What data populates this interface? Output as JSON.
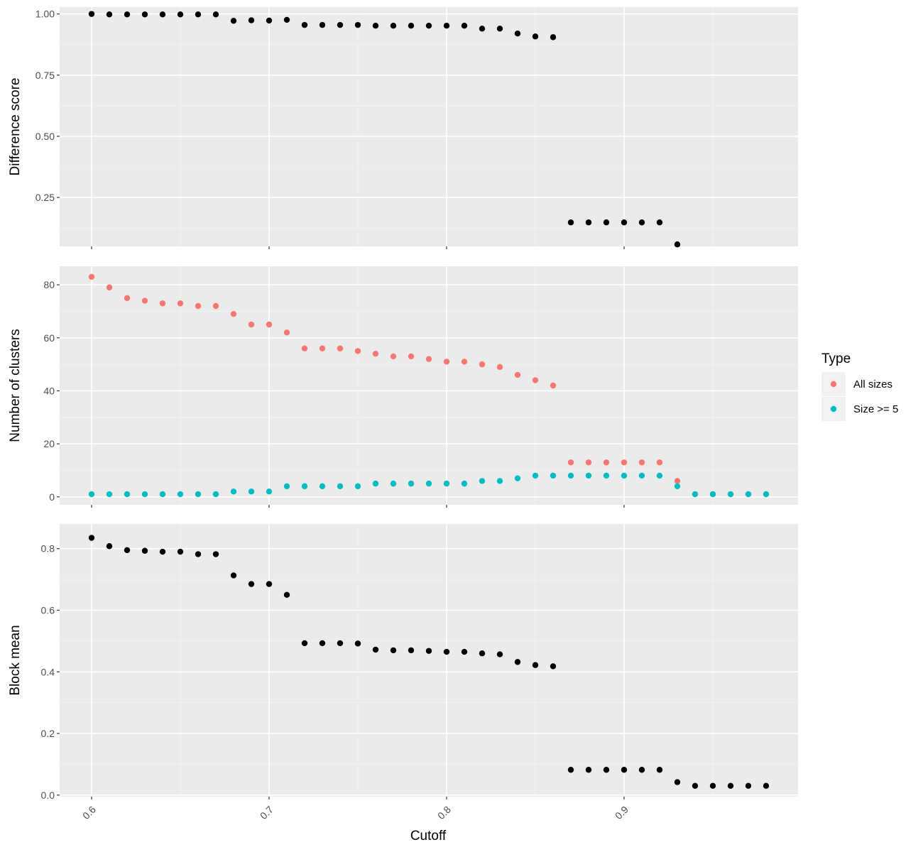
{
  "chart_data": {
    "type": "scatter",
    "xlabel": "Cutoff",
    "x_ticks": [
      0.6,
      0.7,
      0.8,
      0.9
    ],
    "x_tick_labels": [
      "0.6",
      "0.7",
      "0.8",
      "0.9"
    ],
    "xlim": [
      0.582,
      0.998
    ],
    "facets": [
      {
        "ylabel": "Difference score",
        "ylim": [
          0.05,
          1.028
        ],
        "y_ticks": [
          0.25,
          0.5,
          0.75,
          1.0
        ],
        "y_tick_labels": [
          "0.25",
          "0.50",
          "0.75",
          "1.00"
        ],
        "series": [
          {
            "color": "#000000",
            "points": [
              [
                0.6,
                1.0
              ],
              [
                0.61,
                0.998
              ],
              [
                0.62,
                0.998
              ],
              [
                0.63,
                0.998
              ],
              [
                0.64,
                0.998
              ],
              [
                0.65,
                0.998
              ],
              [
                0.66,
                0.998
              ],
              [
                0.67,
                0.998
              ],
              [
                0.68,
                0.972
              ],
              [
                0.69,
                0.974
              ],
              [
                0.7,
                0.973
              ],
              [
                0.71,
                0.976
              ],
              [
                0.72,
                0.955
              ],
              [
                0.73,
                0.955
              ],
              [
                0.74,
                0.955
              ],
              [
                0.75,
                0.955
              ],
              [
                0.76,
                0.952
              ],
              [
                0.77,
                0.952
              ],
              [
                0.78,
                0.952
              ],
              [
                0.79,
                0.952
              ],
              [
                0.8,
                0.952
              ],
              [
                0.81,
                0.952
              ],
              [
                0.82,
                0.94
              ],
              [
                0.83,
                0.94
              ],
              [
                0.84,
                0.92
              ],
              [
                0.85,
                0.908
              ],
              [
                0.86,
                0.905
              ],
              [
                0.87,
                0.148
              ],
              [
                0.88,
                0.148
              ],
              [
                0.89,
                0.148
              ],
              [
                0.9,
                0.148
              ],
              [
                0.91,
                0.148
              ],
              [
                0.92,
                0.148
              ],
              [
                0.93,
                0.058
              ]
            ]
          }
        ]
      },
      {
        "ylabel": "Number of clusters",
        "ylim": [
          -3,
          87
        ],
        "y_ticks": [
          0,
          20,
          40,
          60,
          80
        ],
        "y_tick_labels": [
          "0",
          "20",
          "40",
          "60",
          "80"
        ],
        "series": [
          {
            "name": "All sizes",
            "color": "#F8766D",
            "points": [
              [
                0.6,
                83
              ],
              [
                0.61,
                79
              ],
              [
                0.62,
                75
              ],
              [
                0.63,
                74
              ],
              [
                0.64,
                73
              ],
              [
                0.65,
                73
              ],
              [
                0.66,
                72
              ],
              [
                0.67,
                72
              ],
              [
                0.68,
                69
              ],
              [
                0.69,
                65
              ],
              [
                0.7,
                65
              ],
              [
                0.71,
                62
              ],
              [
                0.72,
                56
              ],
              [
                0.73,
                56
              ],
              [
                0.74,
                56
              ],
              [
                0.75,
                55
              ],
              [
                0.76,
                54
              ],
              [
                0.77,
                53
              ],
              [
                0.78,
                53
              ],
              [
                0.79,
                52
              ],
              [
                0.8,
                51
              ],
              [
                0.81,
                51
              ],
              [
                0.82,
                50
              ],
              [
                0.83,
                49
              ],
              [
                0.84,
                46
              ],
              [
                0.85,
                44
              ],
              [
                0.86,
                42
              ],
              [
                0.87,
                13
              ],
              [
                0.88,
                13
              ],
              [
                0.89,
                13
              ],
              [
                0.9,
                13
              ],
              [
                0.91,
                13
              ],
              [
                0.92,
                13
              ],
              [
                0.93,
                6
              ],
              [
                0.94,
                1
              ],
              [
                0.95,
                1
              ],
              [
                0.96,
                1
              ],
              [
                0.97,
                1
              ],
              [
                0.98,
                1
              ]
            ]
          },
          {
            "name": "Size >= 5",
            "color": "#00BFC4",
            "points": [
              [
                0.6,
                1
              ],
              [
                0.61,
                1
              ],
              [
                0.62,
                1
              ],
              [
                0.63,
                1
              ],
              [
                0.64,
                1
              ],
              [
                0.65,
                1
              ],
              [
                0.66,
                1
              ],
              [
                0.67,
                1
              ],
              [
                0.68,
                2
              ],
              [
                0.69,
                2
              ],
              [
                0.7,
                2
              ],
              [
                0.71,
                4
              ],
              [
                0.72,
                4
              ],
              [
                0.73,
                4
              ],
              [
                0.74,
                4
              ],
              [
                0.75,
                4
              ],
              [
                0.76,
                5
              ],
              [
                0.77,
                5
              ],
              [
                0.78,
                5
              ],
              [
                0.79,
                5
              ],
              [
                0.8,
                5
              ],
              [
                0.81,
                5
              ],
              [
                0.82,
                6
              ],
              [
                0.83,
                6
              ],
              [
                0.84,
                7
              ],
              [
                0.85,
                8
              ],
              [
                0.86,
                8
              ],
              [
                0.87,
                8
              ],
              [
                0.88,
                8
              ],
              [
                0.89,
                8
              ],
              [
                0.9,
                8
              ],
              [
                0.91,
                8
              ],
              [
                0.92,
                8
              ],
              [
                0.93,
                4
              ],
              [
                0.94,
                1
              ],
              [
                0.95,
                1
              ],
              [
                0.96,
                1
              ],
              [
                0.97,
                1
              ],
              [
                0.98,
                1
              ]
            ]
          }
        ]
      },
      {
        "ylabel": "Block mean",
        "ylim": [
          -0.005,
          0.88
        ],
        "y_ticks": [
          0.0,
          0.2,
          0.4,
          0.6,
          0.8
        ],
        "y_tick_labels": [
          "0.0",
          "0.2",
          "0.4",
          "0.6",
          "0.8"
        ],
        "series": [
          {
            "color": "#000000",
            "points": [
              [
                0.6,
                0.835
              ],
              [
                0.61,
                0.808
              ],
              [
                0.62,
                0.795
              ],
              [
                0.63,
                0.793
              ],
              [
                0.64,
                0.79
              ],
              [
                0.65,
                0.79
              ],
              [
                0.66,
                0.782
              ],
              [
                0.67,
                0.782
              ],
              [
                0.68,
                0.713
              ],
              [
                0.69,
                0.685
              ],
              [
                0.7,
                0.685
              ],
              [
                0.71,
                0.65
              ],
              [
                0.72,
                0.493
              ],
              [
                0.73,
                0.493
              ],
              [
                0.74,
                0.493
              ],
              [
                0.75,
                0.492
              ],
              [
                0.76,
                0.472
              ],
              [
                0.77,
                0.47
              ],
              [
                0.78,
                0.47
              ],
              [
                0.79,
                0.468
              ],
              [
                0.8,
                0.465
              ],
              [
                0.81,
                0.465
              ],
              [
                0.82,
                0.46
              ],
              [
                0.83,
                0.457
              ],
              [
                0.84,
                0.432
              ],
              [
                0.85,
                0.422
              ],
              [
                0.86,
                0.418
              ],
              [
                0.87,
                0.082
              ],
              [
                0.88,
                0.082
              ],
              [
                0.89,
                0.082
              ],
              [
                0.9,
                0.082
              ],
              [
                0.91,
                0.082
              ],
              [
                0.92,
                0.082
              ],
              [
                0.93,
                0.042
              ],
              [
                0.94,
                0.03
              ],
              [
                0.95,
                0.03
              ],
              [
                0.96,
                0.03
              ],
              [
                0.97,
                0.03
              ],
              [
                0.98,
                0.03
              ]
            ]
          }
        ]
      }
    ],
    "legend": {
      "title": "Type",
      "position": "right",
      "items": [
        {
          "label": "All sizes",
          "color": "#F8766D"
        },
        {
          "label": "Size >= 5",
          "color": "#00BFC4"
        }
      ]
    },
    "grid": true
  }
}
